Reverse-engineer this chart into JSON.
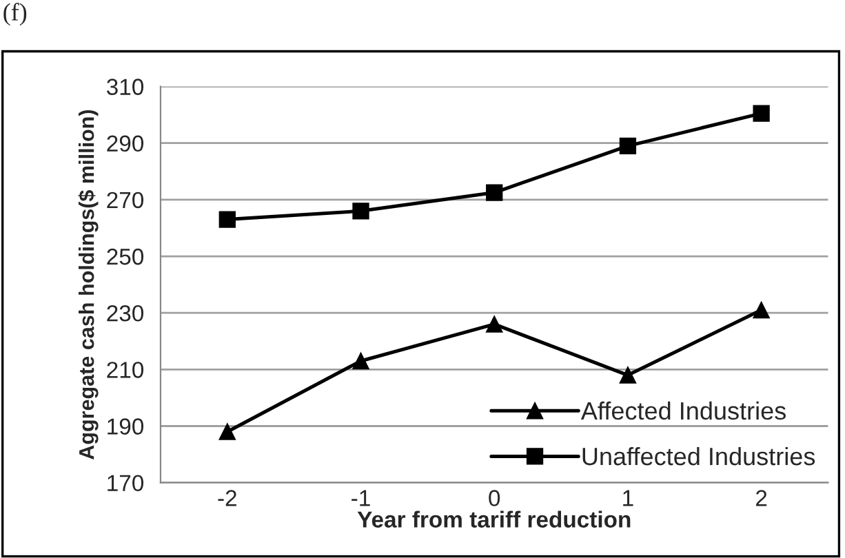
{
  "chart_data": {
    "type": "line",
    "annotations": [
      "(f)"
    ],
    "xlabel": "Year from tariff reduction",
    "ylabel": "Aggregate cash holdings($ million)",
    "categories": [
      "-2",
      "-1",
      "0",
      "1",
      "2"
    ],
    "series": [
      {
        "name": "Affected Industries",
        "color": "#000000",
        "marker": "triangle",
        "values": [
          188,
          213,
          226,
          208,
          231
        ]
      },
      {
        "name": "Unaffected Industries",
        "color": "#000000",
        "marker": "square",
        "values": [
          263,
          266,
          272.5,
          289,
          300.5
        ]
      }
    ],
    "ylim": [
      170,
      310
    ],
    "yticks": [
      170,
      190,
      210,
      230,
      250,
      270,
      290,
      310
    ],
    "grid": "y",
    "legend": "bottom right",
    "line_style": "solid"
  }
}
